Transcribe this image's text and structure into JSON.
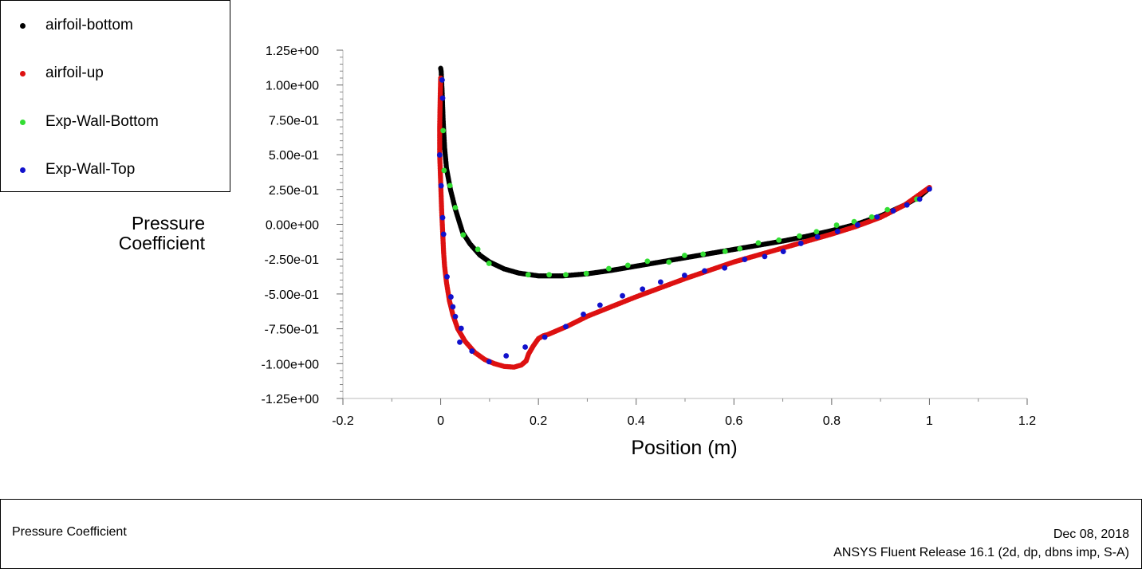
{
  "chart_data": {
    "type": "scatter",
    "title": "Pressure Coefficient",
    "xlabel": "Position (m)",
    "ylabel": [
      "Pressure",
      "Coefficient"
    ],
    "xlim": [
      -0.2,
      1.2
    ],
    "ylim": [
      -1.25,
      1.25
    ],
    "xticks": [
      "-0.2",
      "0",
      "0.2",
      "0.4",
      "0.6",
      "0.8",
      "1",
      "1.2"
    ],
    "xtick_values": [
      -0.2,
      0,
      0.2,
      0.4,
      0.6,
      0.8,
      1.0,
      1.2
    ],
    "yticks": [
      "1.25e+00",
      "1.00e+00",
      "7.50e-01",
      "5.00e-01",
      "2.50e-01",
      "0.00e+00",
      "-2.50e-01",
      "-5.00e-01",
      "-7.50e-01",
      "-1.00e+00",
      "-1.25e+00"
    ],
    "ytick_values": [
      1.25,
      1.0,
      0.75,
      0.5,
      0.25,
      0,
      -0.25,
      -0.5,
      -0.75,
      -1.0,
      -1.25
    ],
    "grid": false,
    "legend_position": "top-left",
    "series": [
      {
        "name": "airfoil-bottom",
        "color": "#000000",
        "dense": true,
        "points": [
          [
            0.0,
            1.12
          ],
          [
            0.001,
            1.1
          ],
          [
            0.003,
            0.95
          ],
          [
            0.005,
            0.75
          ],
          [
            0.008,
            0.55
          ],
          [
            0.012,
            0.4
          ],
          [
            0.02,
            0.25
          ],
          [
            0.03,
            0.11
          ],
          [
            0.045,
            -0.06
          ],
          [
            0.06,
            -0.14
          ],
          [
            0.08,
            -0.22
          ],
          [
            0.1,
            -0.27
          ],
          [
            0.13,
            -0.32
          ],
          [
            0.16,
            -0.35
          ],
          [
            0.2,
            -0.37
          ],
          [
            0.25,
            -0.37
          ],
          [
            0.3,
            -0.355
          ],
          [
            0.35,
            -0.33
          ],
          [
            0.4,
            -0.3
          ],
          [
            0.45,
            -0.27
          ],
          [
            0.5,
            -0.24
          ],
          [
            0.55,
            -0.21
          ],
          [
            0.6,
            -0.18
          ],
          [
            0.65,
            -0.15
          ],
          [
            0.7,
            -0.12
          ],
          [
            0.75,
            -0.085
          ],
          [
            0.8,
            -0.045
          ],
          [
            0.85,
            0.0
          ],
          [
            0.9,
            0.06
          ],
          [
            0.95,
            0.14
          ],
          [
            0.98,
            0.2
          ],
          [
            1.0,
            0.26
          ]
        ]
      },
      {
        "name": "airfoil-up",
        "color": "#dd1111",
        "dense": true,
        "points": [
          [
            0.0,
            1.05
          ],
          [
            -0.001,
            0.9
          ],
          [
            -0.002,
            0.7
          ],
          [
            -0.002,
            0.5
          ],
          [
            0.0,
            0.3
          ],
          [
            0.002,
            0.1
          ],
          [
            0.004,
            -0.05
          ],
          [
            0.006,
            -0.2
          ],
          [
            0.008,
            -0.3
          ],
          [
            0.012,
            -0.42
          ],
          [
            0.018,
            -0.55
          ],
          [
            0.025,
            -0.65
          ],
          [
            0.035,
            -0.75
          ],
          [
            0.05,
            -0.84
          ],
          [
            0.07,
            -0.92
          ],
          [
            0.09,
            -0.97
          ],
          [
            0.11,
            -1.0
          ],
          [
            0.13,
            -1.02
          ],
          [
            0.15,
            -1.025
          ],
          [
            0.165,
            -1.01
          ],
          [
            0.175,
            -0.98
          ],
          [
            0.18,
            -0.93
          ],
          [
            0.19,
            -0.87
          ],
          [
            0.2,
            -0.82
          ],
          [
            0.21,
            -0.8
          ],
          [
            0.22,
            -0.79
          ],
          [
            0.24,
            -0.76
          ],
          [
            0.26,
            -0.73
          ],
          [
            0.3,
            -0.66
          ],
          [
            0.35,
            -0.59
          ],
          [
            0.4,
            -0.52
          ],
          [
            0.45,
            -0.455
          ],
          [
            0.5,
            -0.39
          ],
          [
            0.55,
            -0.33
          ],
          [
            0.6,
            -0.27
          ],
          [
            0.65,
            -0.22
          ],
          [
            0.7,
            -0.17
          ],
          [
            0.75,
            -0.12
          ],
          [
            0.8,
            -0.07
          ],
          [
            0.85,
            -0.015
          ],
          [
            0.9,
            0.05
          ],
          [
            0.95,
            0.14
          ],
          [
            1.0,
            0.265
          ]
        ]
      },
      {
        "name": "Exp-Wall-Bottom",
        "color": "#33dd33",
        "dense": false,
        "points": [
          [
            0.003,
            1.036
          ],
          [
            0.005,
            0.673
          ],
          [
            0.007,
            0.387
          ],
          [
            0.019,
            0.278
          ],
          [
            0.03,
            0.12
          ],
          [
            0.046,
            -0.076
          ],
          [
            0.076,
            -0.179
          ],
          [
            0.099,
            -0.28
          ],
          [
            0.179,
            -0.362
          ],
          [
            0.222,
            -0.362
          ],
          [
            0.256,
            -0.362
          ],
          [
            0.298,
            -0.353
          ],
          [
            0.344,
            -0.318
          ],
          [
            0.383,
            -0.294
          ],
          [
            0.423,
            -0.265
          ],
          [
            0.467,
            -0.271
          ],
          [
            0.499,
            -0.223
          ],
          [
            0.537,
            -0.214
          ],
          [
            0.582,
            -0.194
          ],
          [
            0.612,
            -0.175
          ],
          [
            0.65,
            -0.133
          ],
          [
            0.692,
            -0.113
          ],
          [
            0.734,
            -0.084
          ],
          [
            0.769,
            -0.053
          ],
          [
            0.81,
            -0.006
          ],
          [
            0.846,
            0.019
          ],
          [
            0.882,
            0.053
          ],
          [
            0.914,
            0.105
          ],
          [
            0.974,
            0.181
          ]
        ]
      },
      {
        "name": "Exp-Wall-Top",
        "color": "#1111cc",
        "dense": false,
        "points": [
          [
            0.003,
            1.036
          ],
          [
            0.004,
            0.906
          ],
          [
            -0.002,
            0.498
          ],
          [
            0.001,
            0.277
          ],
          [
            0.004,
            0.048
          ],
          [
            0.006,
            -0.071
          ],
          [
            0.013,
            -0.376
          ],
          [
            0.021,
            -0.521
          ],
          [
            0.025,
            -0.592
          ],
          [
            0.03,
            -0.662
          ],
          [
            0.042,
            -0.747
          ],
          [
            0.039,
            -0.846
          ],
          [
            0.064,
            -0.91
          ],
          [
            0.099,
            -0.986
          ],
          [
            0.134,
            -0.944
          ],
          [
            0.173,
            -0.881
          ],
          [
            0.213,
            -0.81
          ],
          [
            0.256,
            -0.734
          ],
          [
            0.292,
            -0.646
          ],
          [
            0.326,
            -0.58
          ],
          [
            0.372,
            -0.513
          ],
          [
            0.413,
            -0.465
          ],
          [
            0.45,
            -0.414
          ],
          [
            0.499,
            -0.366
          ],
          [
            0.54,
            -0.334
          ],
          [
            0.581,
            -0.313
          ],
          [
            0.622,
            -0.252
          ],
          [
            0.663,
            -0.231
          ],
          [
            0.701,
            -0.195
          ],
          [
            0.737,
            -0.137
          ],
          [
            0.771,
            -0.09
          ],
          [
            0.812,
            -0.051
          ],
          [
            0.853,
            -0.004
          ],
          [
            0.893,
            0.053
          ],
          [
            0.926,
            0.097
          ],
          [
            0.954,
            0.139
          ],
          [
            0.98,
            0.181
          ],
          [
            1.0,
            0.253
          ]
        ]
      }
    ]
  },
  "footer": {
    "title": "Pressure Coefficient",
    "date": "Dec 08, 2018",
    "software": "ANSYS Fluent Release 16.1 (2d, dp, dbns imp, S-A)"
  }
}
